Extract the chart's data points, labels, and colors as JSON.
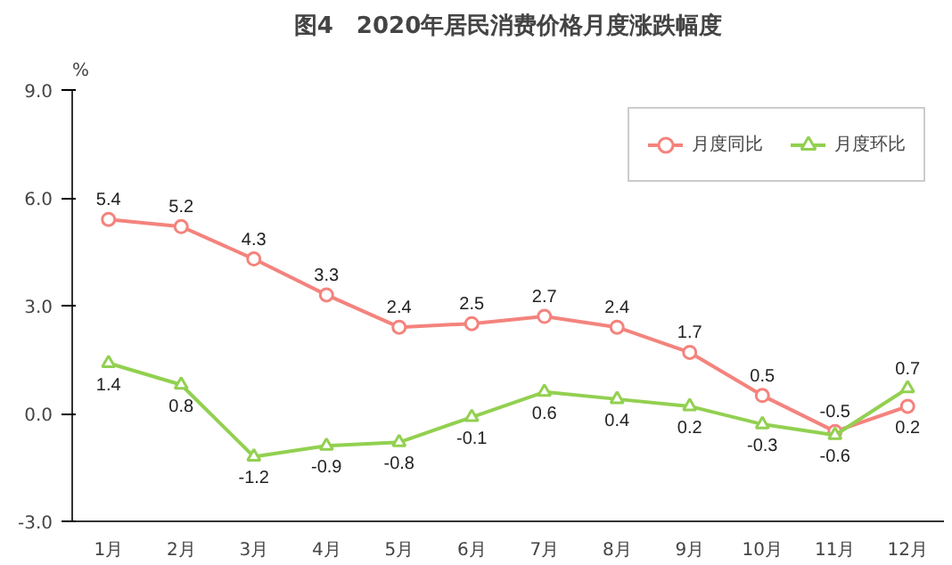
{
  "chart_data": {
    "type": "line",
    "title": "图4　2020年居民消费价格月度涨跌幅度",
    "ylabel": "%",
    "categories": [
      "1月",
      "2月",
      "3月",
      "4月",
      "5月",
      "6月",
      "7月",
      "8月",
      "9月",
      "10月",
      "11月",
      "12月"
    ],
    "series": [
      {
        "name": "月度同比",
        "color": "#f4837d",
        "marker": "circle",
        "values": [
          5.4,
          5.2,
          4.3,
          3.3,
          2.4,
          2.5,
          2.7,
          2.4,
          1.7,
          0.5,
          -0.5,
          0.2
        ]
      },
      {
        "name": "月度环比",
        "color": "#92d050",
        "marker": "triangle",
        "values": [
          1.4,
          0.8,
          -1.2,
          -0.9,
          -0.8,
          -0.1,
          0.6,
          0.4,
          0.2,
          -0.3,
          -0.6,
          0.7
        ]
      }
    ],
    "ylim": [
      -3,
      9
    ],
    "yticks": [
      {
        "value": -3,
        "label": "-3.0"
      },
      {
        "value": 0,
        "label": "0.0"
      },
      {
        "value": 3,
        "label": "3.0"
      },
      {
        "value": 6,
        "label": "6.0"
      },
      {
        "value": 9,
        "label": "9.0"
      }
    ],
    "grid": false,
    "legend": "top right",
    "data_labels": true,
    "line_style": "solid"
  }
}
